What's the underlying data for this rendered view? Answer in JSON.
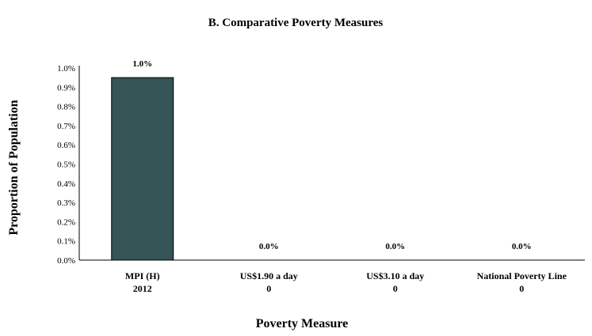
{
  "chart_data": {
    "type": "bar",
    "title": "B. Comparative Poverty Measures",
    "xlabel": "Poverty Measure",
    "ylabel": "Proportion of Population",
    "categories": [
      {
        "line1": "MPI (H)",
        "line2": "2012"
      },
      {
        "line1": "US$1.90 a day",
        "line2": "0"
      },
      {
        "line1": "US$3.10 a day",
        "line2": "0"
      },
      {
        "line1": "National Poverty Line",
        "line2": "0"
      }
    ],
    "values": [
      0.95,
      0,
      0,
      0
    ],
    "data_labels": [
      "1.0%",
      "0.0%",
      "0.0%",
      "0.0%"
    ],
    "ylim": [
      0,
      1.0
    ],
    "yticks": [
      "0.0%",
      "0.1%",
      "0.2%",
      "0.3%",
      "0.4%",
      "0.5%",
      "0.6%",
      "0.7%",
      "0.8%",
      "0.9%",
      "1.0%"
    ],
    "grid": false,
    "legend": "none",
    "bar_color": "#345456"
  }
}
